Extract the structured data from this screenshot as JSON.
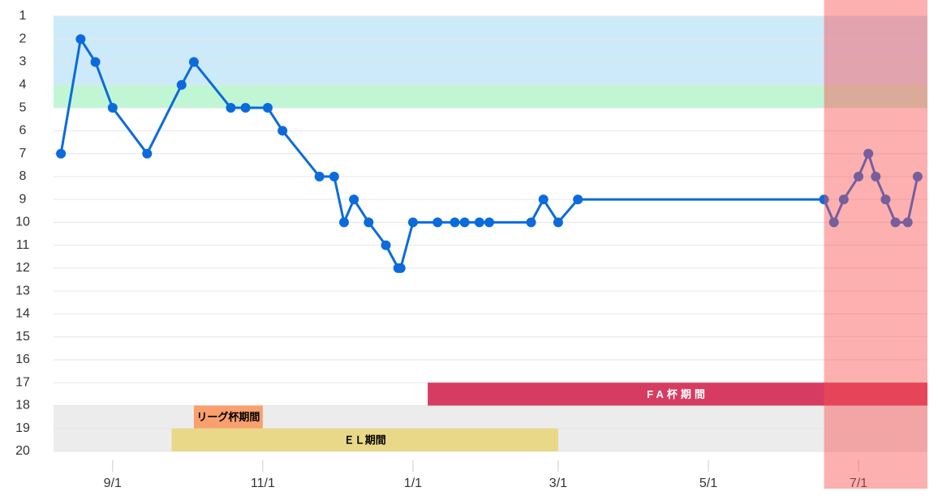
{
  "chart_data": {
    "type": "line",
    "x": [
      "8/11",
      "8/19",
      "8/25",
      "9/1",
      "9/15",
      "9/29",
      "10/4",
      "10/19",
      "10/25",
      "11/3",
      "11/9",
      "11/24",
      "11/30",
      "12/4",
      "12/8",
      "12/14",
      "12/21",
      "12/26",
      "12/27",
      "1/1",
      "1/11",
      "1/18",
      "1/22",
      "1/28",
      "2/1",
      "2/18",
      "2/23",
      "3/1",
      "3/9",
      "6/17",
      "6/21",
      "6/25",
      "7/1",
      "7/5",
      "7/8",
      "7/12",
      "7/16",
      "7/21",
      "7/25"
    ],
    "values": [
      7,
      2,
      3,
      5,
      7,
      4,
      3,
      5,
      5,
      5,
      6,
      8,
      8,
      10,
      9,
      10,
      11,
      12,
      12,
      10,
      10,
      10,
      10,
      10,
      10,
      10,
      9,
      10,
      9,
      9,
      10,
      9,
      8,
      7,
      8,
      9,
      10,
      10,
      8
    ],
    "color": "#0b6bdc",
    "xlim": [
      "8/8",
      "7/29"
    ],
    "xticks": [
      "9/1",
      "11/1",
      "1/1",
      "3/1",
      "5/1",
      "7/1"
    ],
    "ylim": [
      20,
      1
    ],
    "yticks": [
      1,
      2,
      3,
      4,
      5,
      6,
      7,
      8,
      9,
      10,
      11,
      12,
      13,
      14,
      15,
      16,
      17,
      18,
      19,
      20
    ],
    "grid": true,
    "y_bands": [
      {
        "y": [
          1,
          4
        ],
        "color": "#cdeafb"
      },
      {
        "y": [
          4,
          5
        ],
        "color": "#c0f6d4"
      },
      {
        "y": [
          18,
          20
        ],
        "color": "#ececec"
      }
    ],
    "periods": [
      {
        "label": "FA杯期間",
        "x": [
          "1/7",
          "7/29"
        ],
        "y": [
          17,
          18
        ],
        "color": "#d63c61",
        "text_color": "#ffffff"
      },
      {
        "label": "リーグ杯期間",
        "x": [
          "10/4",
          "11/1"
        ],
        "y": [
          18,
          19
        ],
        "color": "#f8a06e",
        "text_color": "#000000"
      },
      {
        "label": "ＥＬ期間",
        "x": [
          "9/25",
          "3/1"
        ],
        "y": [
          19,
          20
        ],
        "color": "#e8d887",
        "text_color": "#000000"
      }
    ],
    "x_band": {
      "x": [
        "6/17",
        "7/29"
      ],
      "color": "rgba(250,80,80,0.45)"
    }
  }
}
